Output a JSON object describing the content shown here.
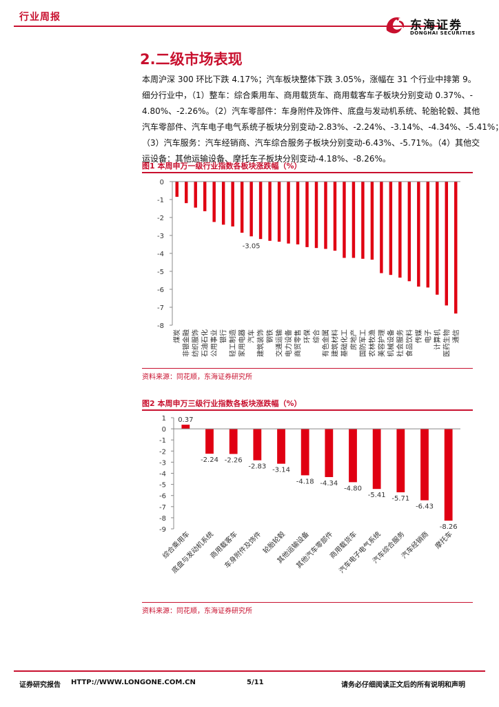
{
  "header": {
    "label": "行业周报"
  },
  "logo": {
    "name_cn": "东海证券",
    "name_en": "DONGHAI SECURITIES"
  },
  "section": {
    "title": "2.二级市场表现",
    "paragraph_lines": [
      "本周沪深 300 环比下跌 4.17%；汽车板块整体下跌 3.05%，涨幅在 31 个行业中排第 9。",
      "细分行业中，（1）整车：综合乘用车、商用载货车、商用载客车子板块分别变动 0.37%、-",
      "4.80%、-2.26%。（2）汽车零部件：车身附件及饰件、底盘与发动机系统、轮胎轮毂、其他",
      "汽车零部件、汽车电子电气系统子板块分别变动-2.83%、-2.24%、-3.14%、-4.34%、-5.41%；",
      "（3）汽车服务：汽车经销商、汽车综合服务子板块分别变动-6.43%、-5.71%。（4）其他交",
      "运设备：其他运输设备、摩托车子板块分别变动-4.18%、-8.26%。"
    ]
  },
  "figure1": {
    "title": "图1  本周申万一级行业指数各板块涨跌幅（%）",
    "source": "资料来源：同花顺，东海证券研究所"
  },
  "figure2": {
    "title": "图2  本周申万三级行业指数各板块涨跌幅（%）",
    "source": "资料来源：同花顺，东海证券研究所"
  },
  "footer": {
    "left": "证券研究报告",
    "url": "HTTP://WWW.LONGONE.COM.CN",
    "page": "5/11",
    "right": "请务必仔细阅读正文后的所有说明和声明"
  },
  "colors": {
    "accent": "#c8102e",
    "bar": "#e00012"
  },
  "chart_data": [
    {
      "type": "bar",
      "title": "本周申万一级行业指数各板块涨跌幅（%）",
      "ylim": [
        -8,
        0
      ],
      "yticks": [
        0,
        -1,
        -2,
        -3,
        -4,
        -5,
        -6,
        -7,
        -8
      ],
      "categories": [
        "煤炭",
        "非银金融",
        "纺织服饰",
        "石油石化",
        "公用事业",
        "银行",
        "轻工制造",
        "家用电器",
        "汽车",
        "建筑装饰",
        "钢铁",
        "交通运输",
        "电力设备",
        "商贸零售",
        "环保",
        "综合",
        "有色金属",
        "建筑材料",
        "基础化工",
        "房地产",
        "国防军工",
        "农林牧渔",
        "美容护理",
        "机械设备",
        "社会服务",
        "食品饮料",
        "传媒",
        "电子",
        "计算机",
        "医药生物",
        "通信"
      ],
      "values": [
        -0.85,
        -1.2,
        -1.45,
        -1.65,
        -2.25,
        -2.4,
        -2.5,
        -2.85,
        -3.05,
        -3.2,
        -3.3,
        -3.35,
        -3.45,
        -3.5,
        -3.65,
        -3.7,
        -3.75,
        -3.85,
        -4.25,
        -4.25,
        -4.3,
        -4.35,
        -5.1,
        -5.2,
        -5.35,
        -5.55,
        -5.85,
        -5.9,
        -6.3,
        -6.9,
        -7.35
      ],
      "annotations": [
        {
          "category": "汽车",
          "label": "-3.05"
        }
      ]
    },
    {
      "type": "bar",
      "title": "本周申万三级行业指数各板块涨跌幅（%）",
      "ylim": [
        -9,
        1
      ],
      "yticks": [
        1,
        0,
        -1,
        -2,
        -3,
        -4,
        -5,
        -6,
        -7,
        -8,
        -9
      ],
      "categories": [
        "综合乘用车",
        "底盘与发动机系统",
        "商用载客车",
        "车身附件及饰件",
        "轮胎轮毂",
        "其他运输设备",
        "其他汽车零部件",
        "商用载货车",
        "汽车电子电气系统",
        "汽车综合服务",
        "汽车经销商",
        "摩托车"
      ],
      "values": [
        0.37,
        -2.24,
        -2.26,
        -2.83,
        -3.14,
        -4.18,
        -4.34,
        -4.8,
        -5.41,
        -5.71,
        -6.43,
        -8.26
      ],
      "value_labels": [
        "0.37",
        "-2.24",
        "-2.26",
        "-2.83",
        "-3.14",
        "-4.18",
        "-4.34",
        "-4.80",
        "-5.41",
        "-5.71",
        "-6.43",
        "-8.26"
      ]
    }
  ]
}
